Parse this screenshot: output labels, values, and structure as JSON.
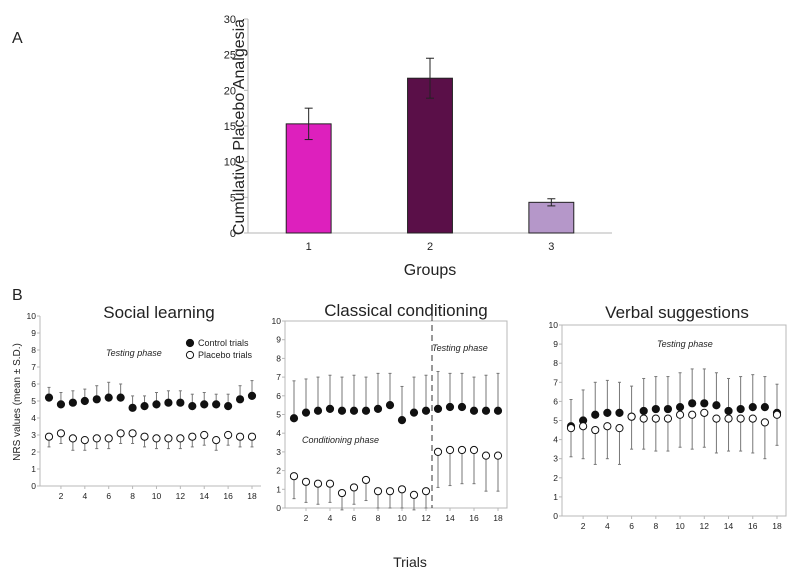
{
  "figure": {
    "panel_a_label": "A",
    "panel_b_label": "B",
    "shared_ylabel": "NRS values (mean ± S.D.)",
    "shared_xlabel": "Trials"
  },
  "chart_data": [
    {
      "id": "A",
      "type": "bar",
      "title": "",
      "categories": [
        "1",
        "2",
        "3"
      ],
      "values": [
        15.3,
        21.7,
        4.3
      ],
      "errors": [
        2.2,
        2.8,
        0.5
      ],
      "colors": [
        "#dd20bd",
        "#5a0f48",
        "#b597c9"
      ],
      "xlabel": "Groups",
      "ylabel": "Cumulative Placebo Analgesia",
      "ylim": [
        0,
        30
      ],
      "yticks": [
        0,
        5,
        10,
        15,
        20,
        25,
        30
      ],
      "grid": false
    },
    {
      "id": "B1",
      "type": "scatter",
      "title": "Social learning",
      "x": [
        1,
        2,
        3,
        4,
        5,
        6,
        7,
        8,
        9,
        10,
        11,
        12,
        13,
        14,
        15,
        16,
        17,
        18
      ],
      "series": [
        {
          "name": "Control trials",
          "marker": "filled",
          "values": [
            5.2,
            4.8,
            4.9,
            5.0,
            5.1,
            5.2,
            5.2,
            4.6,
            4.7,
            4.8,
            4.9,
            4.9,
            4.7,
            4.8,
            4.8,
            4.7,
            5.1,
            5.3
          ],
          "sd": [
            0.6,
            0.7,
            0.7,
            0.7,
            0.8,
            0.9,
            0.8,
            0.7,
            0.6,
            0.7,
            0.7,
            0.7,
            0.7,
            0.7,
            0.6,
            0.7,
            0.8,
            0.9
          ]
        },
        {
          "name": "Placebo trials",
          "marker": "open",
          "values": [
            2.9,
            3.1,
            2.8,
            2.7,
            2.8,
            2.8,
            3.1,
            3.1,
            2.9,
            2.8,
            2.8,
            2.8,
            2.9,
            3.0,
            2.7,
            3.0,
            2.9,
            2.9
          ],
          "sd": [
            0.6,
            0.6,
            0.7,
            0.6,
            0.6,
            0.6,
            0.6,
            0.6,
            0.6,
            0.6,
            0.6,
            0.6,
            0.6,
            0.6,
            0.6,
            0.6,
            0.6,
            0.6
          ]
        }
      ],
      "annotations": [
        "Testing phase"
      ],
      "legend": [
        "Control trials",
        "Placebo trials"
      ],
      "xticks": [
        "2",
        "4",
        "6",
        "8",
        "10",
        "12",
        "14",
        "16",
        "18"
      ],
      "yticks": [
        "0",
        "1",
        "2",
        "3",
        "4",
        "5",
        "6",
        "7",
        "8",
        "9",
        "10"
      ],
      "ylim": [
        0,
        10
      ],
      "divider_after_trial": null
    },
    {
      "id": "B2",
      "type": "scatter",
      "title": "Classical conditioning",
      "x": [
        1,
        2,
        3,
        4,
        5,
        6,
        7,
        8,
        9,
        10,
        11,
        12,
        13,
        14,
        15,
        16,
        17,
        18
      ],
      "series": [
        {
          "name": "Control trials",
          "marker": "filled",
          "values": [
            4.8,
            5.1,
            5.2,
            5.3,
            5.2,
            5.2,
            5.2,
            5.3,
            5.5,
            4.7,
            5.1,
            5.2,
            5.3,
            5.4,
            5.4,
            5.2,
            5.2,
            5.2
          ],
          "sd": [
            2.0,
            1.8,
            1.8,
            1.8,
            1.8,
            1.9,
            1.8,
            1.9,
            1.7,
            1.8,
            1.9,
            1.9,
            2.0,
            1.8,
            1.8,
            1.8,
            1.9,
            2.0
          ]
        },
        {
          "name": "Placebo trials",
          "marker": "open",
          "values": [
            1.7,
            1.4,
            1.3,
            1.3,
            0.8,
            1.1,
            1.5,
            0.9,
            0.9,
            1.0,
            0.7,
            0.9,
            3.0,
            3.1,
            3.1,
            3.1,
            2.8,
            2.8
          ],
          "sd": [
            1.2,
            1.1,
            1.1,
            1.0,
            0.9,
            0.9,
            1.1,
            0.9,
            0.9,
            1.0,
            0.8,
            0.9,
            1.9,
            1.9,
            1.8,
            1.8,
            1.9,
            1.9
          ]
        }
      ],
      "annotations": [
        "Testing phase",
        "Conditioning phase"
      ],
      "xticks": [
        "2",
        "4",
        "6",
        "8",
        "10",
        "12",
        "14",
        "16",
        "18"
      ],
      "yticks": [
        "0",
        "1",
        "2",
        "3",
        "4",
        "5",
        "6",
        "7",
        "8",
        "9",
        "10"
      ],
      "ylim": [
        0,
        10
      ],
      "divider_after_trial": 12.5
    },
    {
      "id": "B3",
      "type": "scatter",
      "title": "Verbal suggestions",
      "x": [
        1,
        2,
        3,
        4,
        5,
        6,
        7,
        8,
        9,
        10,
        11,
        12,
        13,
        14,
        15,
        16,
        17,
        18
      ],
      "series": [
        {
          "name": "Control trials",
          "marker": "filled",
          "values": [
            4.7,
            5.0,
            5.3,
            5.4,
            5.4,
            5.2,
            5.5,
            5.6,
            5.6,
            5.7,
            5.9,
            5.9,
            5.8,
            5.5,
            5.6,
            5.7,
            5.7,
            5.4
          ],
          "sd": [
            1.4,
            1.6,
            1.7,
            1.7,
            1.6,
            1.6,
            1.7,
            1.7,
            1.7,
            1.8,
            1.8,
            1.8,
            1.7,
            1.7,
            1.7,
            1.7,
            1.6,
            1.5
          ]
        },
        {
          "name": "Placebo trials",
          "marker": "open",
          "values": [
            4.6,
            4.7,
            4.5,
            4.7,
            4.6,
            5.2,
            5.1,
            5.1,
            5.1,
            5.3,
            5.3,
            5.4,
            5.1,
            5.1,
            5.1,
            5.1,
            4.9,
            5.3
          ],
          "sd": [
            1.5,
            1.7,
            1.8,
            1.7,
            1.9,
            1.7,
            1.6,
            1.7,
            1.7,
            1.7,
            1.8,
            1.8,
            1.8,
            1.7,
            1.7,
            1.8,
            1.9,
            1.6
          ]
        }
      ],
      "annotations": [
        "Testing phase"
      ],
      "xticks": [
        "2",
        "4",
        "6",
        "8",
        "10",
        "12",
        "14",
        "16",
        "18"
      ],
      "yticks": [
        "0",
        "1",
        "2",
        "3",
        "4",
        "5",
        "6",
        "7",
        "8",
        "9",
        "10"
      ],
      "ylim": [
        0,
        10
      ],
      "divider_after_trial": null
    }
  ]
}
